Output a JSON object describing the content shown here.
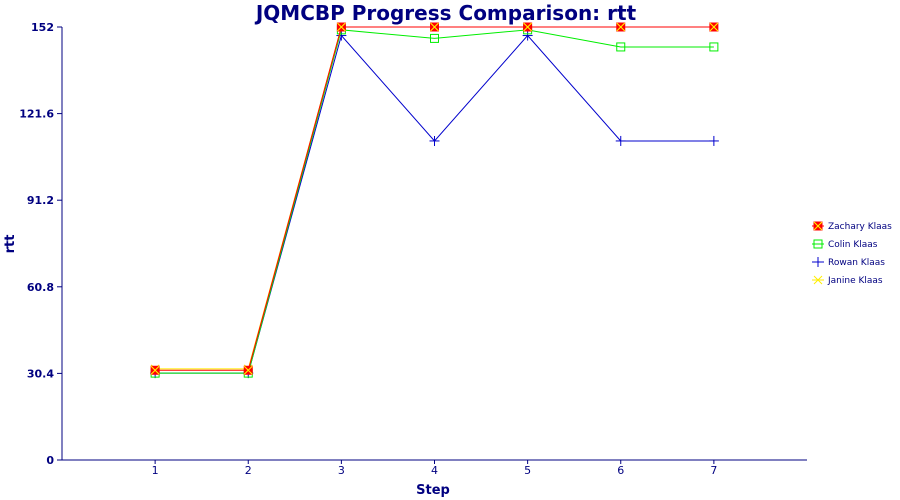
{
  "colors": {
    "text": "#000080",
    "axis": "#000080",
    "background": "#ffffff"
  },
  "chart_data": {
    "type": "line",
    "title": "JQMCBP Progress Comparison: rtt",
    "xlabel": "Step",
    "ylabel": "rtt",
    "x": [
      1,
      2,
      3,
      4,
      5,
      6,
      7
    ],
    "xlim": [
      0,
      8
    ],
    "ylim": [
      0,
      152
    ],
    "yticks": [
      "0",
      "30.4",
      "60.8",
      "91.2",
      "121.6",
      "152"
    ],
    "xticks": [
      "1",
      "2",
      "3",
      "4",
      "5",
      "6",
      "7"
    ],
    "grid": false,
    "legend_position": "right",
    "series": [
      {
        "name": "Zachary Klaas",
        "color": "#ff0000",
        "marker": "filled-square-x",
        "values": [
          31.5,
          31.5,
          152,
          152,
          152,
          152,
          152
        ]
      },
      {
        "name": "Colin Klaas",
        "color": "#00ee00",
        "marker": "open-square",
        "values": [
          30.5,
          30.5,
          151,
          148,
          151,
          145,
          145
        ]
      },
      {
        "name": "Rowan Klaas",
        "color": "#0000cc",
        "marker": "plus",
        "values": [
          30.5,
          30.5,
          149,
          112,
          149,
          112,
          112
        ]
      },
      {
        "name": "Janine Klaas",
        "color": "#ffee00",
        "marker": "x",
        "values": [
          32,
          32,
          152,
          152,
          152,
          152,
          152
        ]
      }
    ]
  }
}
